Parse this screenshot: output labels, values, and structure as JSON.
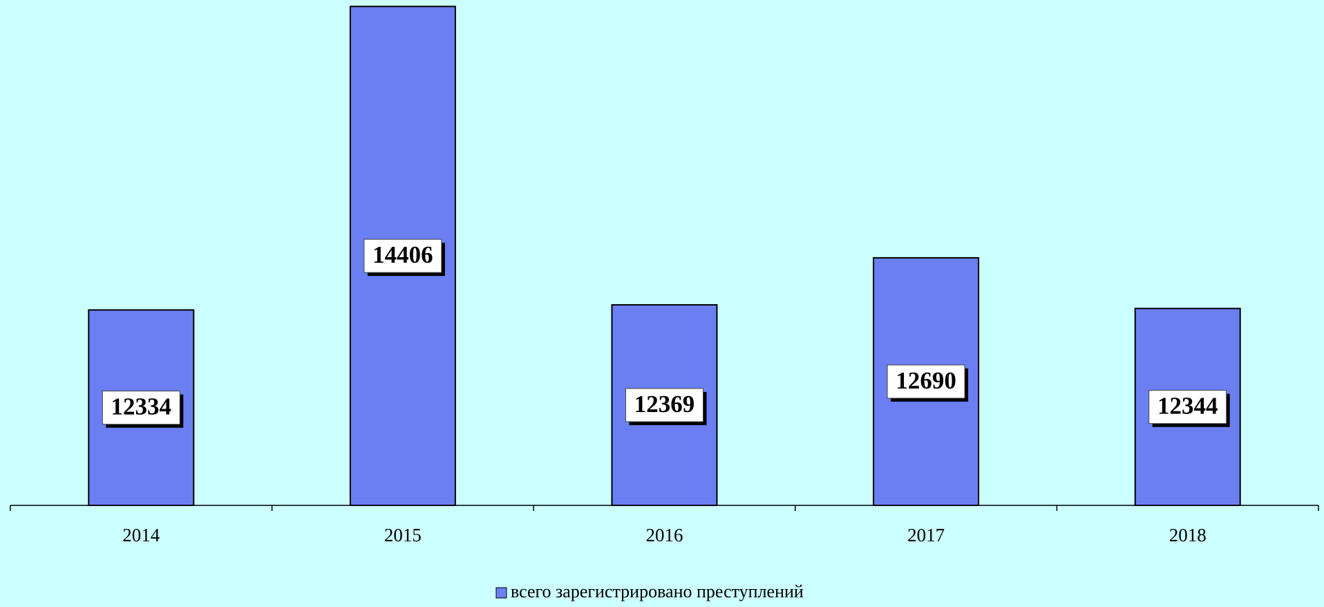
{
  "chart_data": {
    "type": "bar",
    "categories": [
      "2014",
      "2015",
      "2016",
      "2017",
      "2018"
    ],
    "series": [
      {
        "name": "всего зарегистрировано преступлений",
        "color": "#6b7ff2",
        "values": [
          12334,
          14406,
          12369,
          12690,
          12344
        ]
      }
    ],
    "ylim": [
      11000,
      14450
    ],
    "legend": "bottom"
  }
}
